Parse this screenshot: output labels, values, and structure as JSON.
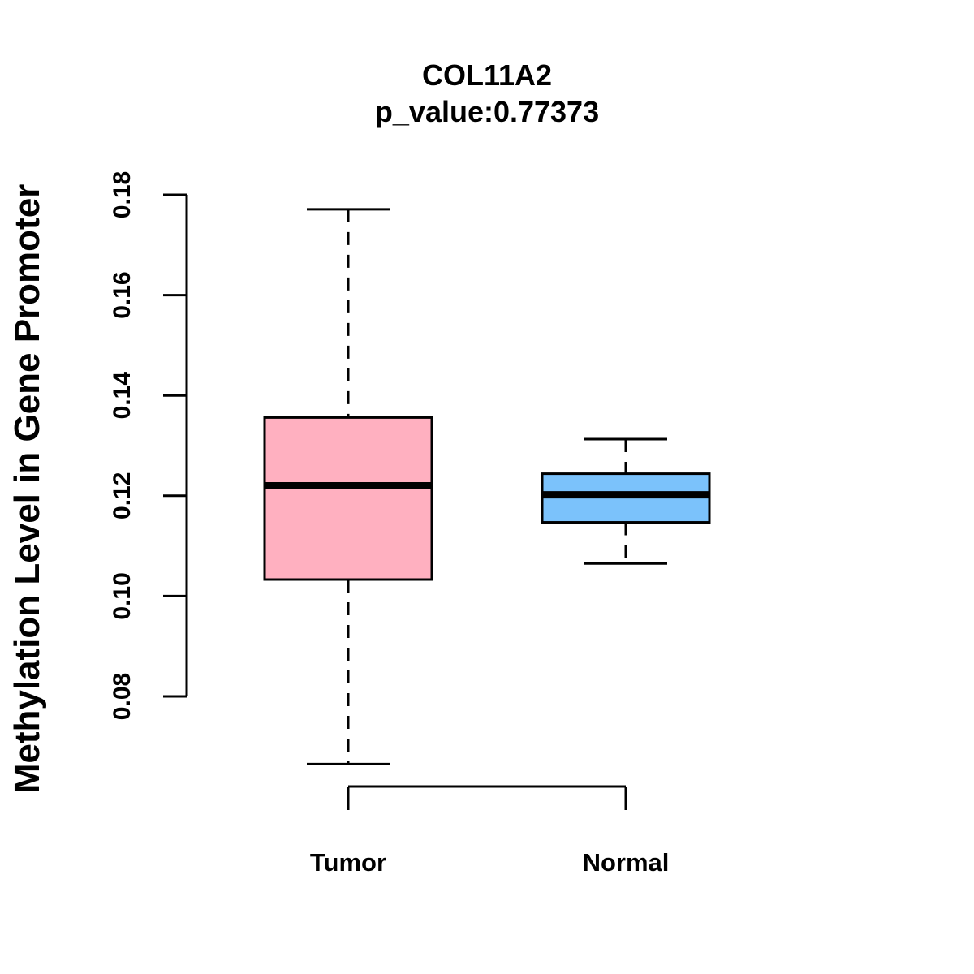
{
  "chart_data": {
    "type": "boxplot",
    "title": "COL11A2",
    "subtitle": "p_value:0.77373",
    "xlabel": "",
    "ylabel": "Methylation Level in Gene Promoter",
    "yticks": [
      "0.08",
      "0.10",
      "0.12",
      "0.14",
      "0.16",
      "0.18"
    ],
    "ytick_values": [
      0.08,
      0.1,
      0.12,
      0.14,
      0.16,
      0.18
    ],
    "ylim": [
      0.08,
      0.18
    ],
    "grid": false,
    "categories": [
      "Tumor",
      "Normal"
    ],
    "series": [
      {
        "name": "Tumor",
        "min": 0.0665,
        "q1": 0.1033,
        "median": 0.122,
        "q3": 0.1356,
        "max": 0.1771,
        "color": "#ffb0c0"
      },
      {
        "name": "Normal",
        "min": 0.1065,
        "q1": 0.1147,
        "median": 0.1202,
        "q3": 0.1244,
        "max": 0.1313,
        "color": "#7bc2fb"
      }
    ]
  }
}
